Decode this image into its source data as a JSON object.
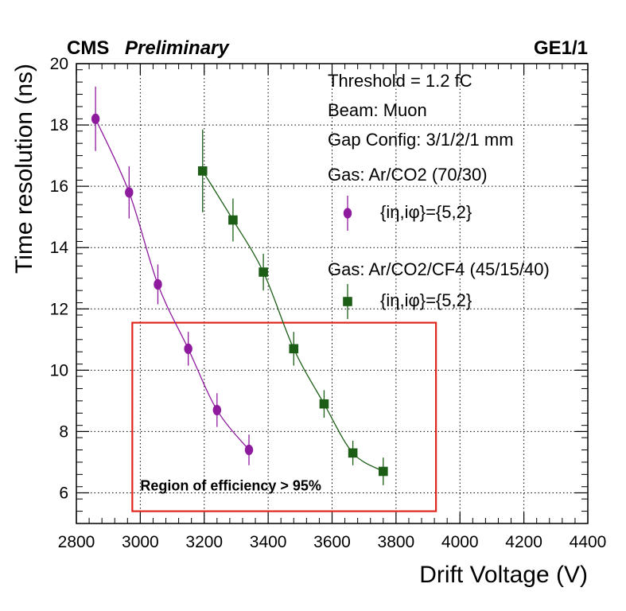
{
  "chart_data": {
    "type": "scatter",
    "header_left_bold": "CMS",
    "header_left_italic": "Preliminary",
    "header_right": "GE1/1",
    "xlabel": "Drift Voltage (V)",
    "ylabel": "Time resolution (ns)",
    "xlim": [
      2800,
      4400
    ],
    "ylim": [
      5,
      20
    ],
    "x_ticks": [
      2800,
      3000,
      3200,
      3400,
      3600,
      3800,
      4000,
      4200,
      4400
    ],
    "y_ticks": [
      6,
      8,
      10,
      12,
      14,
      16,
      18,
      20
    ],
    "grid": true,
    "legend_info": [
      "Threshold = 1.2 fC",
      "Beam: Muon",
      "Gap Config: 3/1/2/1 mm"
    ],
    "series": [
      {
        "gas_label": "Gas: Ar/CO2 (70/30)",
        "entry_label": "{iη,iφ}={5,2}",
        "marker": "circle",
        "color": "#8e1a9e",
        "x": [
          2860,
          2965,
          3055,
          3150,
          3240,
          3340
        ],
        "y": [
          18.2,
          15.8,
          12.8,
          10.7,
          8.7,
          7.4
        ],
        "yerr": [
          1.05,
          0.85,
          0.65,
          0.55,
          0.55,
          0.5
        ]
      },
      {
        "gas_label": "Gas: Ar/CO2/CF4 (45/15/40)",
        "entry_label": "{iη,iφ}={5,2}",
        "marker": "square",
        "color": "#1c5e16",
        "x": [
          3195,
          3290,
          3385,
          3480,
          3575,
          3665,
          3760
        ],
        "y": [
          16.5,
          14.9,
          13.2,
          10.7,
          8.9,
          7.3,
          6.7
        ],
        "yerr": [
          1.35,
          0.7,
          0.6,
          0.55,
          0.45,
          0.4,
          0.45
        ]
      }
    ],
    "region": {
      "label": "Region of efficiency > 95%",
      "color": "#e0261c",
      "x_range": [
        2975,
        3925
      ],
      "y_range": [
        5.4,
        11.55
      ]
    }
  }
}
